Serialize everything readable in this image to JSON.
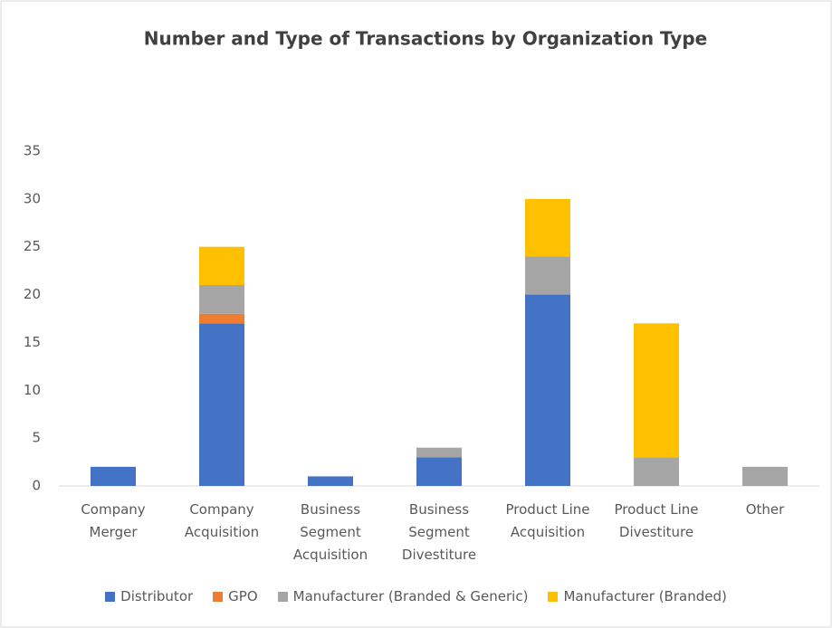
{
  "chart_data": {
    "type": "stacked_bar",
    "title": "Number and Type of Transactions by Organization Type",
    "categories": [
      "Company Merger",
      "Company Acquisition",
      "Business Segment Acquisition",
      "Business Segment Divestiture",
      "Product Line Acquisition",
      "Product Line Divestiture",
      "Other"
    ],
    "series": [
      {
        "name": "Distributor",
        "color": "#4472c4",
        "values": [
          2,
          17,
          1,
          3,
          20,
          0,
          0
        ]
      },
      {
        "name": "GPO",
        "color": "#ed7d31",
        "values": [
          0,
          1,
          0,
          0,
          0,
          0,
          0
        ]
      },
      {
        "name": "Manufacturer (Branded & Generic)",
        "color": "#a5a5a5",
        "values": [
          0,
          3,
          0,
          1,
          4,
          3,
          2
        ]
      },
      {
        "name": "Manufacturer (Branded)",
        "color": "#ffc000",
        "values": [
          0,
          4,
          0,
          0,
          6,
          14,
          0
        ]
      }
    ],
    "ylim": [
      0,
      35
    ],
    "yticks": [
      0,
      5,
      10,
      15,
      20,
      25,
      30,
      35
    ],
    "grid": false,
    "legend": "bottom"
  }
}
